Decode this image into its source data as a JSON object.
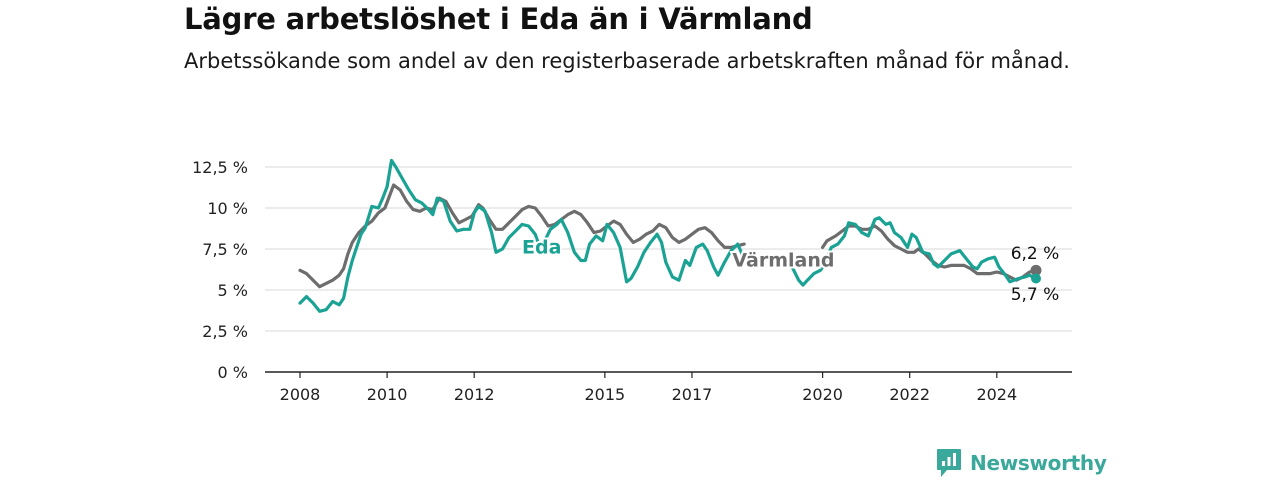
{
  "header": {
    "title": "Lägre arbetslöshet i Eda än i Värmland",
    "subtitle": "Arbetssökande som andel av den registerbaserade arbetskraften månad för månad."
  },
  "brand": {
    "name": "Newsworthy",
    "icon": "newsworthy-logo-icon",
    "color": "#3aa89a"
  },
  "colors": {
    "eda": "#1aa394",
    "varmland": "#6d6d6d",
    "grid": "#d9d9d9",
    "axis": "#222222"
  },
  "chart_data": {
    "type": "line",
    "title": "Lägre arbetslöshet i Eda än i Värmland",
    "subtitle": "Arbetssökande som andel av den registerbaserade arbetskraften månad för månad.",
    "ylim": [
      0,
      12.5
    ],
    "yticks": [
      0,
      2.5,
      5,
      7.5,
      10,
      12.5
    ],
    "ytick_labels": [
      "0 %",
      "2,5 %",
      "5 %",
      "7,5 %",
      "10 %",
      "12,5 %"
    ],
    "xlim": [
      2008,
      2025.2
    ],
    "xticks": [
      2008,
      2010,
      2012,
      2015,
      2017,
      2020,
      2022,
      2024
    ],
    "xtick_labels": [
      "2008",
      "2010",
      "2012",
      "2015",
      "2017",
      "2020",
      "2022",
      "2024"
    ],
    "grid": true,
    "legend": "inline labels",
    "series": [
      {
        "name": "Eda",
        "color": "#1aa394",
        "end_label": "5,7 %",
        "gap": [
          2013.48,
          2013.62
        ],
        "points": [
          [
            2008.0,
            4.2
          ],
          [
            2008.15,
            4.6
          ],
          [
            2008.3,
            4.2
          ],
          [
            2008.45,
            3.7
          ],
          [
            2008.6,
            3.8
          ],
          [
            2008.75,
            4.3
          ],
          [
            2008.9,
            4.1
          ],
          [
            2009.0,
            4.5
          ],
          [
            2009.1,
            5.8
          ],
          [
            2009.2,
            6.8
          ],
          [
            2009.3,
            7.6
          ],
          [
            2009.4,
            8.4
          ],
          [
            2009.5,
            8.8
          ],
          [
            2009.65,
            10.1
          ],
          [
            2009.8,
            10.0
          ],
          [
            2009.9,
            10.6
          ],
          [
            2010.0,
            11.3
          ],
          [
            2010.1,
            12.9
          ],
          [
            2010.2,
            12.5
          ],
          [
            2010.35,
            11.8
          ],
          [
            2010.5,
            11.1
          ],
          [
            2010.65,
            10.5
          ],
          [
            2010.8,
            10.3
          ],
          [
            2010.95,
            9.9
          ],
          [
            2011.05,
            9.6
          ],
          [
            2011.15,
            10.6
          ],
          [
            2011.3,
            10.4
          ],
          [
            2011.45,
            9.2
          ],
          [
            2011.6,
            8.6
          ],
          [
            2011.75,
            8.7
          ],
          [
            2011.9,
            8.7
          ],
          [
            2012.0,
            9.7
          ],
          [
            2012.1,
            10.1
          ],
          [
            2012.25,
            9.8
          ],
          [
            2012.4,
            8.5
          ],
          [
            2012.5,
            7.3
          ],
          [
            2012.65,
            7.5
          ],
          [
            2012.8,
            8.2
          ],
          [
            2012.95,
            8.6
          ],
          [
            2013.1,
            9.0
          ],
          [
            2013.25,
            8.9
          ],
          [
            2013.4,
            8.4
          ],
          [
            2013.48,
            7.8
          ],
          [
            2013.62,
            8.0
          ],
          [
            2013.75,
            8.7
          ],
          [
            2013.9,
            9.0
          ],
          [
            2014.0,
            9.3
          ],
          [
            2014.15,
            8.5
          ],
          [
            2014.3,
            7.3
          ],
          [
            2014.45,
            6.8
          ],
          [
            2014.55,
            6.8
          ],
          [
            2014.65,
            7.8
          ],
          [
            2014.8,
            8.3
          ],
          [
            2014.95,
            8.0
          ],
          [
            2015.05,
            9.0
          ],
          [
            2015.2,
            8.5
          ],
          [
            2015.35,
            7.6
          ],
          [
            2015.5,
            5.5
          ],
          [
            2015.6,
            5.7
          ],
          [
            2015.75,
            6.4
          ],
          [
            2015.9,
            7.3
          ],
          [
            2016.05,
            7.9
          ],
          [
            2016.2,
            8.4
          ],
          [
            2016.3,
            7.9
          ],
          [
            2016.4,
            6.7
          ],
          [
            2016.55,
            5.8
          ],
          [
            2016.7,
            5.6
          ],
          [
            2016.85,
            6.8
          ],
          [
            2016.95,
            6.5
          ],
          [
            2017.1,
            7.6
          ],
          [
            2017.25,
            7.8
          ],
          [
            2017.35,
            7.4
          ],
          [
            2017.5,
            6.4
          ],
          [
            2017.6,
            5.9
          ],
          [
            2017.75,
            6.7
          ],
          [
            2017.9,
            7.4
          ],
          [
            2018.05,
            7.8
          ],
          [
            2018.15,
            7.2
          ]
        ]
      },
      {
        "name": "Eda",
        "color": "#1aa394",
        "segment": "after-label-gap",
        "points": [
          [
            2019.3,
            6.4
          ],
          [
            2019.45,
            5.6
          ],
          [
            2019.55,
            5.3
          ],
          [
            2019.65,
            5.6
          ],
          [
            2019.8,
            6.0
          ],
          [
            2019.95,
            6.2
          ],
          [
            2020.05,
            6.6
          ],
          [
            2020.2,
            7.6
          ],
          [
            2020.35,
            7.8
          ],
          [
            2020.5,
            8.3
          ],
          [
            2020.6,
            9.1
          ],
          [
            2020.75,
            9.0
          ],
          [
            2020.9,
            8.5
          ],
          [
            2021.05,
            8.3
          ],
          [
            2021.2,
            9.3
          ],
          [
            2021.3,
            9.4
          ],
          [
            2021.45,
            9.0
          ],
          [
            2021.55,
            9.1
          ],
          [
            2021.65,
            8.5
          ],
          [
            2021.8,
            8.2
          ],
          [
            2021.95,
            7.6
          ],
          [
            2022.05,
            8.4
          ],
          [
            2022.15,
            8.2
          ],
          [
            2022.3,
            7.3
          ],
          [
            2022.45,
            7.2
          ],
          [
            2022.55,
            6.6
          ],
          [
            2022.65,
            6.4
          ],
          [
            2022.8,
            6.8
          ],
          [
            2022.95,
            7.2
          ],
          [
            2023.05,
            7.3
          ],
          [
            2023.15,
            7.4
          ],
          [
            2023.3,
            6.9
          ],
          [
            2023.45,
            6.4
          ],
          [
            2023.55,
            6.3
          ],
          [
            2023.65,
            6.7
          ],
          [
            2023.8,
            6.9
          ],
          [
            2023.95,
            7.0
          ],
          [
            2024.05,
            6.4
          ],
          [
            2024.2,
            5.9
          ],
          [
            2024.3,
            5.5
          ],
          [
            2024.5,
            5.7
          ],
          [
            2024.65,
            5.8
          ],
          [
            2024.75,
            5.9
          ],
          [
            2024.9,
            5.7
          ]
        ]
      },
      {
        "name": "Värmland",
        "color": "#6d6d6d",
        "end_label": "6,2 %",
        "label_gap": [
          2018.2,
          2020.0
        ],
        "points": [
          [
            2008.0,
            6.2
          ],
          [
            2008.15,
            6.0
          ],
          [
            2008.3,
            5.6
          ],
          [
            2008.45,
            5.2
          ],
          [
            2008.6,
            5.4
          ],
          [
            2008.75,
            5.6
          ],
          [
            2008.9,
            5.9
          ],
          [
            2009.0,
            6.3
          ],
          [
            2009.1,
            7.2
          ],
          [
            2009.2,
            7.9
          ],
          [
            2009.35,
            8.5
          ],
          [
            2009.5,
            8.9
          ],
          [
            2009.65,
            9.2
          ],
          [
            2009.8,
            9.7
          ],
          [
            2009.95,
            10.0
          ],
          [
            2010.05,
            10.7
          ],
          [
            2010.15,
            11.4
          ],
          [
            2010.3,
            11.1
          ],
          [
            2010.45,
            10.4
          ],
          [
            2010.6,
            9.9
          ],
          [
            2010.75,
            9.8
          ],
          [
            2010.9,
            10.0
          ],
          [
            2011.05,
            9.9
          ],
          [
            2011.2,
            10.6
          ],
          [
            2011.35,
            10.4
          ],
          [
            2011.5,
            9.7
          ],
          [
            2011.65,
            9.1
          ],
          [
            2011.8,
            9.3
          ],
          [
            2011.95,
            9.5
          ],
          [
            2012.1,
            10.2
          ],
          [
            2012.2,
            10.0
          ],
          [
            2012.35,
            9.3
          ],
          [
            2012.5,
            8.7
          ],
          [
            2012.65,
            8.7
          ],
          [
            2012.8,
            9.1
          ],
          [
            2012.95,
            9.5
          ],
          [
            2013.1,
            9.9
          ],
          [
            2013.25,
            10.1
          ],
          [
            2013.4,
            10.0
          ],
          [
            2013.55,
            9.5
          ],
          [
            2013.7,
            8.9
          ],
          [
            2013.85,
            9.0
          ],
          [
            2014.0,
            9.3
          ],
          [
            2014.15,
            9.6
          ],
          [
            2014.3,
            9.8
          ],
          [
            2014.45,
            9.6
          ],
          [
            2014.6,
            9.1
          ],
          [
            2014.75,
            8.5
          ],
          [
            2014.9,
            8.6
          ],
          [
            2015.05,
            8.9
          ],
          [
            2015.2,
            9.2
          ],
          [
            2015.35,
            9.0
          ],
          [
            2015.5,
            8.4
          ],
          [
            2015.65,
            7.9
          ],
          [
            2015.8,
            8.1
          ],
          [
            2015.95,
            8.4
          ],
          [
            2016.1,
            8.6
          ],
          [
            2016.25,
            9.0
          ],
          [
            2016.4,
            8.8
          ],
          [
            2016.55,
            8.2
          ],
          [
            2016.7,
            7.9
          ],
          [
            2016.85,
            8.1
          ],
          [
            2017.0,
            8.4
          ],
          [
            2017.15,
            8.7
          ],
          [
            2017.3,
            8.8
          ],
          [
            2017.45,
            8.5
          ],
          [
            2017.6,
            8.0
          ],
          [
            2017.75,
            7.6
          ],
          [
            2017.9,
            7.6
          ],
          [
            2018.05,
            7.7
          ],
          [
            2018.2,
            7.8
          ]
        ]
      },
      {
        "name": "Värmland",
        "color": "#6d6d6d",
        "segment": "after-label-gap",
        "points": [
          [
            2020.0,
            7.6
          ],
          [
            2020.1,
            8.0
          ],
          [
            2020.3,
            8.3
          ],
          [
            2020.45,
            8.6
          ],
          [
            2020.6,
            8.9
          ],
          [
            2020.75,
            8.9
          ],
          [
            2020.9,
            8.7
          ],
          [
            2021.05,
            8.7
          ],
          [
            2021.2,
            8.9
          ],
          [
            2021.35,
            8.6
          ],
          [
            2021.5,
            8.1
          ],
          [
            2021.65,
            7.7
          ],
          [
            2021.8,
            7.5
          ],
          [
            2021.95,
            7.3
          ],
          [
            2022.1,
            7.3
          ],
          [
            2022.2,
            7.5
          ],
          [
            2022.35,
            7.2
          ],
          [
            2022.5,
            6.8
          ],
          [
            2022.65,
            6.5
          ],
          [
            2022.8,
            6.4
          ],
          [
            2022.95,
            6.5
          ],
          [
            2023.1,
            6.5
          ],
          [
            2023.25,
            6.5
          ],
          [
            2023.4,
            6.3
          ],
          [
            2023.55,
            6.0
          ],
          [
            2023.7,
            6.0
          ],
          [
            2023.85,
            6.0
          ],
          [
            2024.0,
            6.1
          ],
          [
            2024.15,
            6.0
          ],
          [
            2024.3,
            5.8
          ],
          [
            2024.45,
            5.6
          ],
          [
            2024.6,
            5.8
          ],
          [
            2024.75,
            6.1
          ],
          [
            2024.9,
            6.2
          ]
        ]
      }
    ],
    "annotations": [
      {
        "text": "Eda",
        "color": "#1aa394",
        "x": 2013.55,
        "y": 7.6
      },
      {
        "text": "Värmland",
        "color": "#6d6d6d",
        "x": 2019.1,
        "y": 6.8
      }
    ]
  }
}
